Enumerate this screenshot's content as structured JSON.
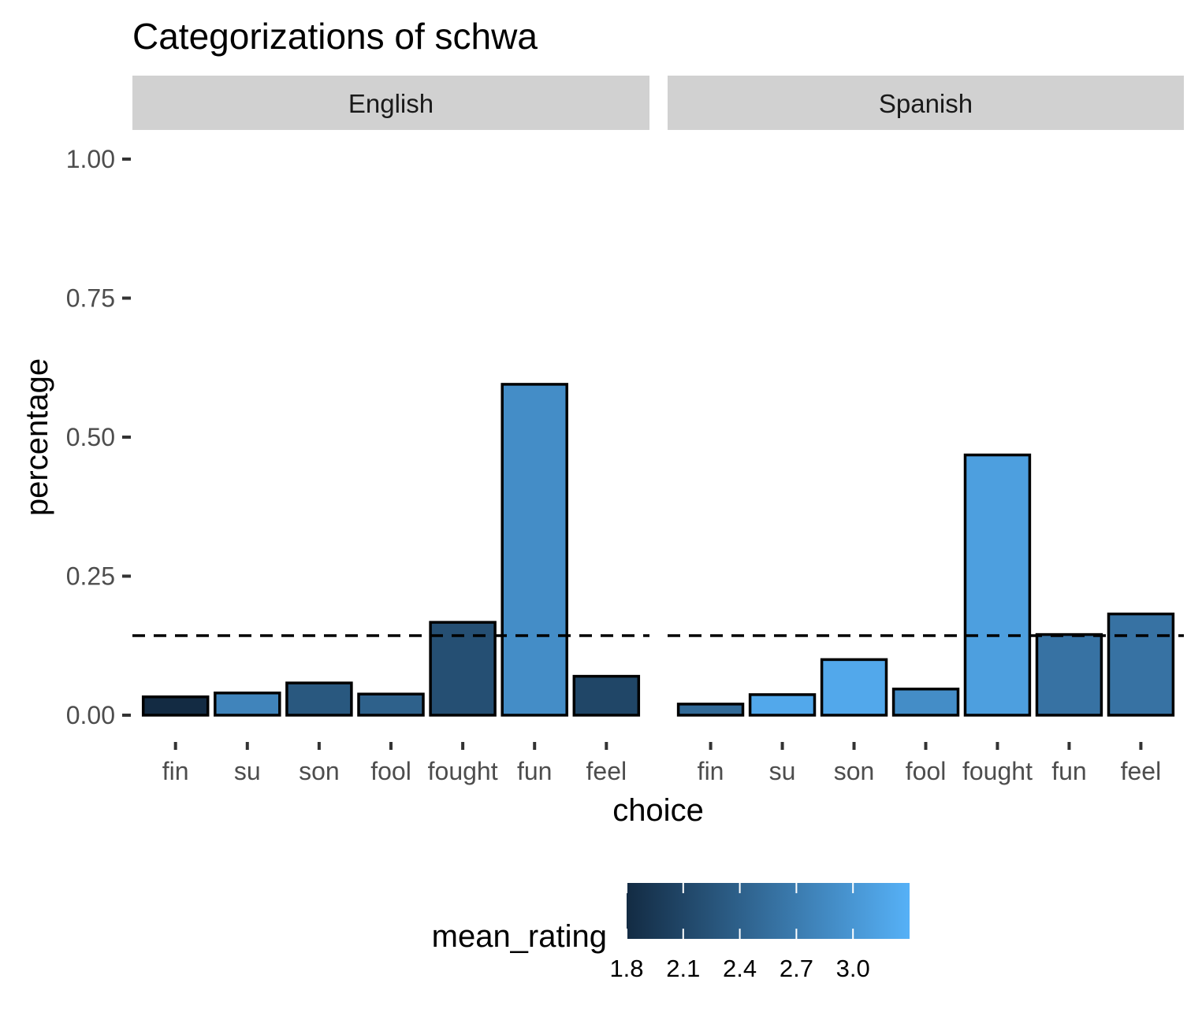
{
  "chart_data": {
    "type": "bar",
    "title": "Categorizations of schwa",
    "xlabel": "choice",
    "ylabel": "percentage",
    "ylim": [
      0,
      1
    ],
    "yticks": [
      "0.00",
      "0.25",
      "0.50",
      "0.75",
      "1.00"
    ],
    "yticks_values": [
      0,
      0.25,
      0.5,
      0.75,
      1.0
    ],
    "categories": [
      "fin",
      "su",
      "son",
      "fool",
      "fought",
      "fun",
      "feel"
    ],
    "reference_line": {
      "y": 0.143,
      "style": "dashed"
    },
    "panels": [
      {
        "name": "English",
        "values": [
          0.033,
          0.04,
          0.058,
          0.038,
          0.167,
          0.595,
          0.07
        ],
        "mean_rating": [
          1.8,
          2.8,
          2.3,
          2.4,
          2.2,
          2.9,
          2.1
        ]
      },
      {
        "name": "Spanish",
        "values": [
          0.02,
          0.037,
          0.1,
          0.047,
          0.468,
          0.145,
          0.182
        ],
        "mean_rating": [
          2.5,
          3.2,
          3.2,
          2.9,
          3.1,
          2.6,
          2.6
        ]
      }
    ],
    "legend": {
      "title": "mean_rating",
      "position": "bottom",
      "min": 1.8,
      "max": 3.3,
      "ticks": [
        1.8,
        2.1,
        2.4,
        2.7,
        3.0
      ],
      "tick_labels": [
        "1.8",
        "2.1",
        "2.4",
        "2.7",
        "3.0"
      ],
      "color_low": "#132B43",
      "color_high": "#56B1F7"
    },
    "grid": false
  }
}
